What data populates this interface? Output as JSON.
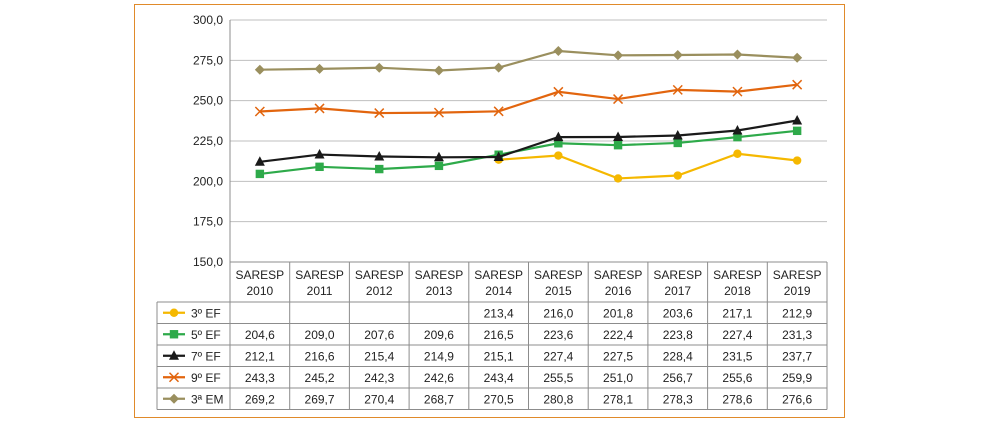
{
  "chart_data": {
    "type": "line",
    "categories": [
      [
        "SARESP",
        "2010"
      ],
      [
        "SARESP",
        "2011"
      ],
      [
        "SARESP",
        "2012"
      ],
      [
        "SARESP",
        "2013"
      ],
      [
        "SARESP",
        "2014"
      ],
      [
        "SARESP",
        "2015"
      ],
      [
        "SARESP",
        "2016"
      ],
      [
        "SARESP",
        "2017"
      ],
      [
        "SARESP",
        "2018"
      ],
      [
        "SARESP",
        "2019"
      ]
    ],
    "ylim": [
      150,
      300
    ],
    "yticks": [
      "150,0",
      "175,0",
      "200,0",
      "225,0",
      "250,0",
      "275,0",
      "300,0"
    ],
    "grid": true,
    "legend": "data-table-left",
    "series": [
      {
        "name": "3º EF",
        "color": "#f5b800",
        "marker": "circle",
        "values": [
          null,
          null,
          null,
          null,
          213.4,
          216.0,
          201.8,
          203.6,
          217.1,
          212.9
        ],
        "labels": [
          "",
          "",
          "",
          "",
          "213,4",
          "216,0",
          "201,8",
          "203,6",
          "217,1",
          "212,9"
        ]
      },
      {
        "name": "5º EF",
        "color": "#2eaa4a",
        "marker": "square",
        "values": [
          204.6,
          209.0,
          207.6,
          209.6,
          216.5,
          223.6,
          222.4,
          223.8,
          227.4,
          231.3
        ],
        "labels": [
          "204,6",
          "209,0",
          "207,6",
          "209,6",
          "216,5",
          "223,6",
          "222,4",
          "223,8",
          "227,4",
          "231,3"
        ]
      },
      {
        "name": "7º EF",
        "color": "#1a1a1a",
        "marker": "triangle",
        "values": [
          212.1,
          216.6,
          215.4,
          214.9,
          215.1,
          227.4,
          227.5,
          228.4,
          231.5,
          237.7
        ],
        "labels": [
          "212,1",
          "216,6",
          "215,4",
          "214,9",
          "215,1",
          "227,4",
          "227,5",
          "228,4",
          "231,5",
          "237,7"
        ]
      },
      {
        "name": "9º EF",
        "color": "#e2650e",
        "marker": "x",
        "values": [
          243.3,
          245.2,
          242.3,
          242.6,
          243.4,
          255.5,
          251.0,
          256.7,
          255.6,
          259.9
        ],
        "labels": [
          "243,3",
          "245,2",
          "242,3",
          "242,6",
          "243,4",
          "255,5",
          "251,0",
          "256,7",
          "255,6",
          "259,9"
        ]
      },
      {
        "name": "3ª EM",
        "color": "#9a8f5e",
        "marker": "diamond",
        "values": [
          269.2,
          269.7,
          270.4,
          268.7,
          270.5,
          280.8,
          278.1,
          278.3,
          278.6,
          276.6
        ],
        "labels": [
          "269,2",
          "269,7",
          "270,4",
          "268,7",
          "270,5",
          "280,8",
          "278,1",
          "278,3",
          "278,6",
          "276,6"
        ]
      }
    ]
  }
}
